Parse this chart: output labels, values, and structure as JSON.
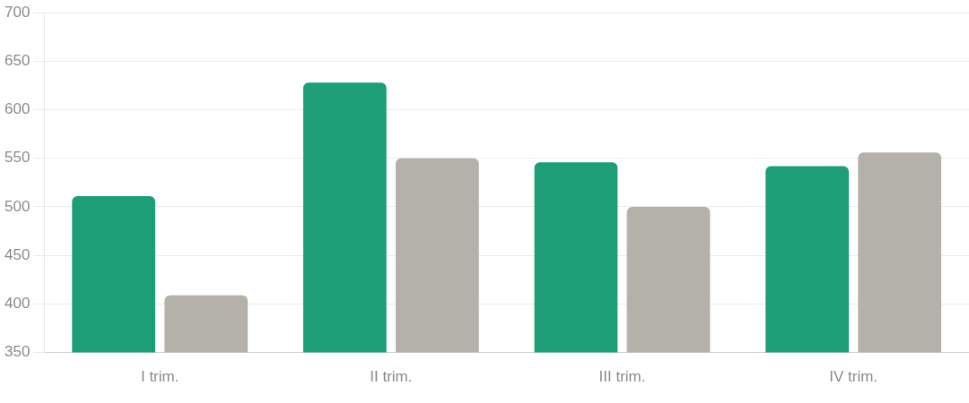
{
  "chart_data": {
    "type": "bar",
    "categories": [
      "I trim.",
      "II trim.",
      "III trim.",
      "IV trim."
    ],
    "series": [
      {
        "color": "#1e9e76",
        "values": [
          511,
          628,
          546,
          542
        ]
      },
      {
        "color": "#b4b1aa",
        "values": [
          409,
          550,
          500,
          556
        ]
      }
    ],
    "ylim": [
      350,
      700
    ],
    "yticks": [
      350,
      400,
      450,
      500,
      550,
      600,
      650,
      700
    ],
    "grid": "y"
  }
}
